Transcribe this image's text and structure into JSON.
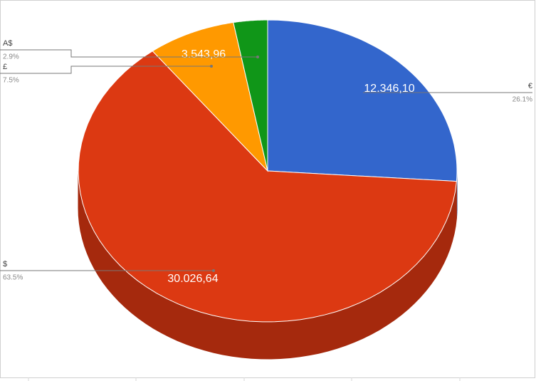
{
  "chart_data": {
    "type": "pie3d",
    "categories": [
      "€",
      "$",
      "£",
      "A$"
    ],
    "values": [
      26.1,
      63.5,
      7.5,
      2.9
    ],
    "value_labels": [
      "26.1%",
      "63.5%",
      "7.5%",
      "2.9%"
    ],
    "slice_labels": [
      "12.346,10",
      "30.026,64",
      "3.543,96",
      null
    ],
    "colors": [
      "#3366cc",
      "#dc3912",
      "#ff9900",
      "#109618"
    ],
    "side_colors": [
      "#26509a",
      "#a5290d",
      "#bf7300",
      "#0c7112"
    ]
  }
}
